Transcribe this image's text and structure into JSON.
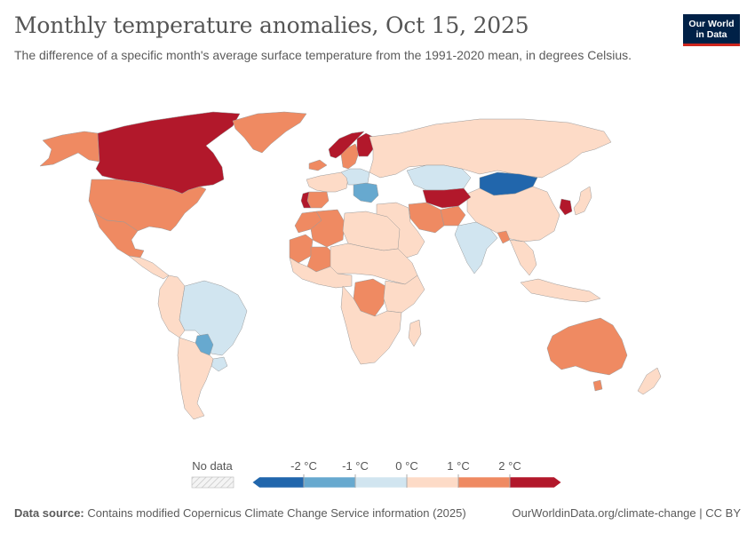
{
  "header": {
    "title": "Monthly temperature anomalies, Oct 15, 2025",
    "subtitle": "The difference of a specific month's average surface temperature from the 1991-2020 mean, in degrees Celsius.",
    "logo_line1": "Our World",
    "logo_line2": "in Data"
  },
  "legend": {
    "no_data_label": "No data",
    "ticks": [
      "-2 °C",
      "-1 °C",
      "0 °C",
      "1 °C",
      "2 °C"
    ],
    "bins": [
      {
        "label": "below -2",
        "color": "#2166ac"
      },
      {
        "label": "-2 to -1",
        "color": "#67a9cf"
      },
      {
        "label": "-1 to 0",
        "color": "#d1e5f0"
      },
      {
        "label": "0 to 1",
        "color": "#fddbc7"
      },
      {
        "label": "1 to 2",
        "color": "#ef8a62"
      },
      {
        "label": "above 2",
        "color": "#b2182b"
      }
    ]
  },
  "footer": {
    "source_label": "Data source:",
    "source_text": "Contains modified Copernicus Climate Change Service information (2025)",
    "url": "OurWorldinData.org/climate-change",
    "license": "CC BY"
  },
  "regions": [
    {
      "name": "Canada",
      "bin": 5
    },
    {
      "name": "Alaska",
      "bin": 4
    },
    {
      "name": "Greenland",
      "bin": 4
    },
    {
      "name": "United States",
      "bin": 4
    },
    {
      "name": "Mexico",
      "bin": 4
    },
    {
      "name": "Central America",
      "bin": 3
    },
    {
      "name": "Brazil",
      "bin": 2
    },
    {
      "name": "Paraguay",
      "bin": 1
    },
    {
      "name": "Western South America",
      "bin": 3
    },
    {
      "name": "Argentina and Chile",
      "bin": 3
    },
    {
      "name": "Uruguay",
      "bin": 2
    },
    {
      "name": "Iceland",
      "bin": 4
    },
    {
      "name": "Norway",
      "bin": 5
    },
    {
      "name": "Sweden",
      "bin": 4
    },
    {
      "name": "Finland",
      "bin": 5
    },
    {
      "name": "Western Europe",
      "bin": 3
    },
    {
      "name": "Spain",
      "bin": 4
    },
    {
      "name": "Portugal",
      "bin": 5
    },
    {
      "name": "Central Europe",
      "bin": 2
    },
    {
      "name": "Balkans",
      "bin": 1
    },
    {
      "name": "Russia",
      "bin": 3
    },
    {
      "name": "Kazakhstan",
      "bin": 2
    },
    {
      "name": "Mongolia",
      "bin": 0
    },
    {
      "name": "China",
      "bin": 3
    },
    {
      "name": "Korea",
      "bin": 5
    },
    {
      "name": "Japan",
      "bin": 3
    },
    {
      "name": "Central Asia",
      "bin": 5
    },
    {
      "name": "Iran",
      "bin": 4
    },
    {
      "name": "Afghanistan",
      "bin": 4
    },
    {
      "name": "Middle East",
      "bin": 3
    },
    {
      "name": "India",
      "bin": 2
    },
    {
      "name": "Bangladesh",
      "bin": 4
    },
    {
      "name": "Southeast Asia",
      "bin": 3
    },
    {
      "name": "Indonesia",
      "bin": 3
    },
    {
      "name": "Morocco",
      "bin": 4
    },
    {
      "name": "Algeria",
      "bin": 4
    },
    {
      "name": "Mali",
      "bin": 4
    },
    {
      "name": "Mauritania",
      "bin": 4
    },
    {
      "name": "Libya and Egypt",
      "bin": 3
    },
    {
      "name": "West Africa",
      "bin": 3
    },
    {
      "name": "Sahel",
      "bin": 3
    },
    {
      "name": "DR Congo",
      "bin": 4
    },
    {
      "name": "East Africa",
      "bin": 3
    },
    {
      "name": "Southern Africa",
      "bin": 3
    },
    {
      "name": "Madagascar",
      "bin": 3
    },
    {
      "name": "Australia",
      "bin": 4
    },
    {
      "name": "Tasmania",
      "bin": 4
    },
    {
      "name": "New Zealand",
      "bin": 3
    }
  ]
}
